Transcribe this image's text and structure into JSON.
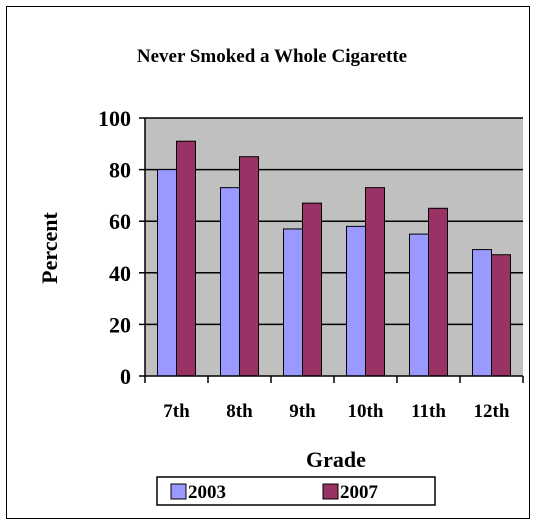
{
  "chart_data": {
    "type": "bar",
    "title": "Never Smoked a Whole Cigarette",
    "xlabel": "Grade",
    "ylabel": "Percent",
    "categories": [
      "7th",
      "8th",
      "9th",
      "10th",
      "11th",
      "12th"
    ],
    "series": [
      {
        "name": "2003",
        "color": "#9999ff",
        "values": [
          80,
          73,
          57,
          58,
          55,
          49
        ]
      },
      {
        "name": "2007",
        "color": "#993366",
        "values": [
          91,
          85,
          67,
          73,
          65,
          47
        ]
      }
    ],
    "ylim": [
      0,
      100
    ],
    "yticks": [
      "0",
      "20",
      "40",
      "60",
      "80",
      "100"
    ],
    "grid": true,
    "legend_position": "bottom",
    "plot_background": "#c0c0c0"
  }
}
